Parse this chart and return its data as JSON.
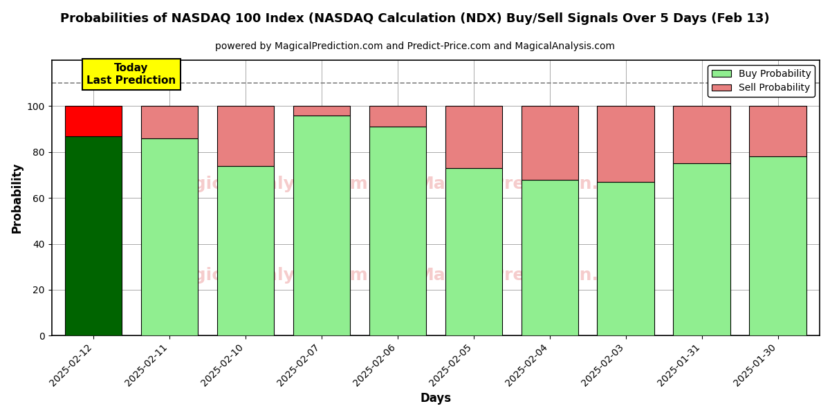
{
  "title": "Probabilities of NASDAQ 100 Index (NASDAQ Calculation (NDX) Buy/Sell Signals Over 5 Days (Feb 13)",
  "subtitle": "powered by MagicalPrediction.com and Predict-Price.com and MagicalAnalysis.com",
  "xlabel": "Days",
  "ylabel": "Probability",
  "dates": [
    "2025-02-12",
    "2025-02-11",
    "2025-02-10",
    "2025-02-07",
    "2025-02-06",
    "2025-02-05",
    "2025-02-04",
    "2025-02-03",
    "2025-01-31",
    "2025-01-30"
  ],
  "buy_values": [
    87,
    86,
    74,
    96,
    91,
    73,
    68,
    67,
    75,
    78
  ],
  "sell_values": [
    13,
    14,
    26,
    4,
    9,
    27,
    32,
    33,
    25,
    22
  ],
  "today_buy_color": "#006400",
  "today_sell_color": "#FF0000",
  "buy_color": "#90EE90",
  "sell_color": "#E88080",
  "today_label_bg": "#FFFF00",
  "today_label_text": "Today\nLast Prediction",
  "legend_buy": "Buy Probability",
  "legend_sell": "Sell Probability",
  "ylim": [
    0,
    120
  ],
  "yticks": [
    0,
    20,
    40,
    60,
    80,
    100
  ],
  "dashed_line_y": 110,
  "background_color": "#ffffff",
  "bar_edge_color": "#000000",
  "watermark_color": "#E88080",
  "watermark_alpha": 0.4,
  "watermark_fontsize": 18
}
